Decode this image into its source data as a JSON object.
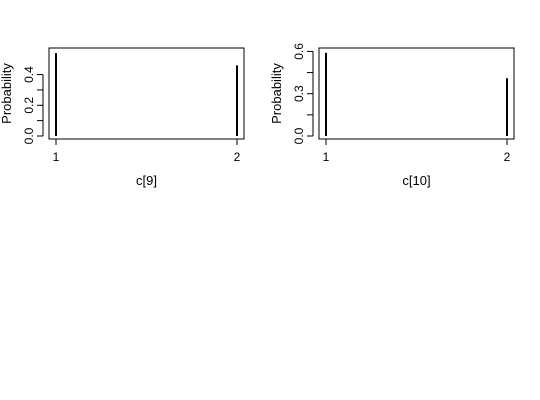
{
  "chart_data": [
    {
      "type": "bar",
      "style": "spike",
      "x": [
        1,
        2
      ],
      "values": [
        0.54,
        0.46
      ],
      "xlabel": "c[9]",
      "ylabel": "Probability",
      "xticks": [
        "1",
        "2"
      ],
      "yticks": [
        "0.0",
        "0.2",
        "0.4"
      ],
      "ylim": [
        0,
        0.56
      ],
      "grid": false
    },
    {
      "type": "bar",
      "style": "spike",
      "x": [
        1,
        2
      ],
      "values": [
        0.59,
        0.41
      ],
      "xlabel": "c[10]",
      "ylabel": "Probability",
      "xticks": [
        "1",
        "2"
      ],
      "yticks": [
        "0.0",
        "0.3",
        "0.6"
      ],
      "ylim": [
        0,
        0.61
      ],
      "grid": false
    }
  ]
}
